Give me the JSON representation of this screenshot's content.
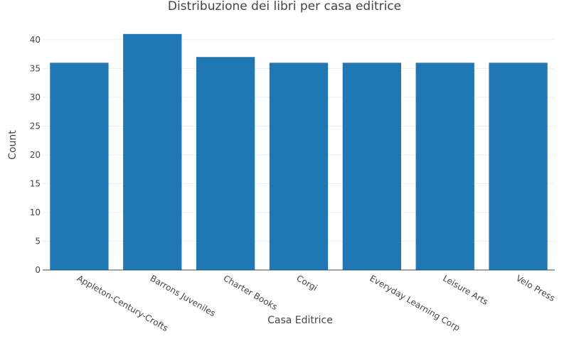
{
  "chart_data": {
    "type": "bar",
    "title": "Distribuzione dei libri per casa editrice",
    "xlabel": "Casa Editrice",
    "ylabel": "Count",
    "categories": [
      "Appleton-Century-Crofts",
      "Barrons Juveniles",
      "Charter Books",
      "Corgi",
      "Everyday Learning Corp",
      "Leisure Arts",
      "Velo Press"
    ],
    "values": [
      36,
      41,
      37,
      36,
      36,
      36,
      36
    ],
    "ylim": [
      0,
      43.2
    ],
    "yticks": [
      0,
      5,
      10,
      15,
      20,
      25,
      30,
      35,
      40
    ],
    "grid": true,
    "color": "#1f77b4"
  }
}
